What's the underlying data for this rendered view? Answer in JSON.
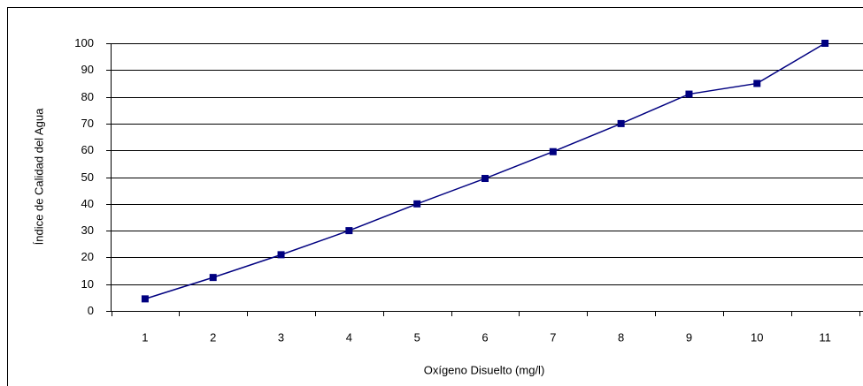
{
  "chart_data": {
    "type": "line",
    "x_label": "Oxígeno Disuelto (mg/l)",
    "y_label": "Índice de Calidad del Agua",
    "categories": [
      "1",
      "2",
      "3",
      "4",
      "5",
      "6",
      "7",
      "8",
      "9",
      "10",
      "11"
    ],
    "series": [
      {
        "color": "#000080",
        "values": [
          4.5,
          12.5,
          21,
          30,
          40,
          49.5,
          59.5,
          70,
          81,
          85,
          100
        ]
      }
    ],
    "ylim": [
      0,
      100
    ],
    "yticks": [
      0,
      10,
      20,
      30,
      40,
      50,
      60,
      70,
      80,
      90,
      100
    ],
    "grid": true
  }
}
